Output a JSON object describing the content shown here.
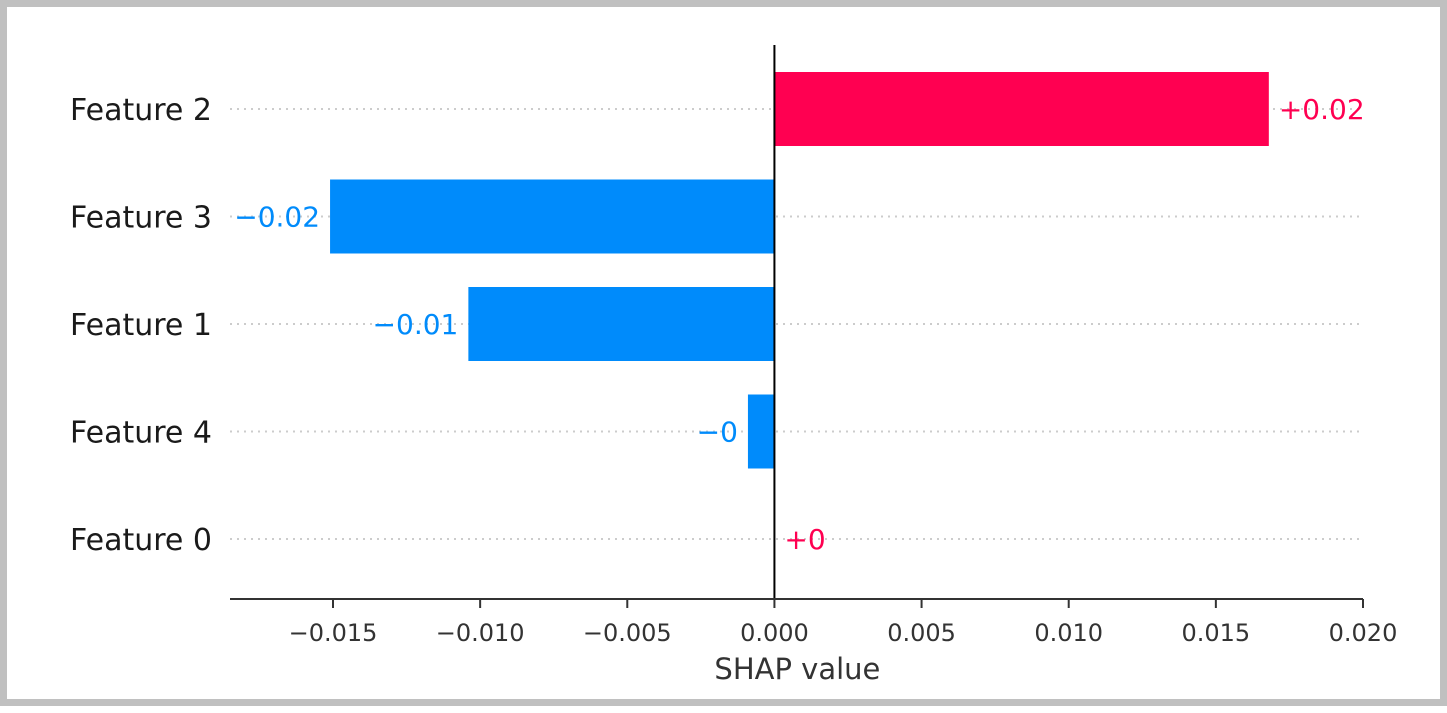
{
  "chart_data": {
    "type": "bar",
    "orientation": "horizontal",
    "title": "",
    "xlabel": "SHAP value",
    "ylabel": "",
    "xlim": [
      -0.0185,
      0.02
    ],
    "grid": false,
    "legend": "none",
    "categories": [
      "Feature 2",
      "Feature 3",
      "Feature 1",
      "Feature 4",
      "Feature 0"
    ],
    "values": [
      0.0168,
      -0.0151,
      -0.0104,
      -0.0009,
      0.0
    ],
    "value_labels": [
      "+0.02",
      "−0.02",
      "−0.01",
      "−0",
      "+0"
    ],
    "x_ticks": [
      -0.015,
      -0.01,
      -0.005,
      0.0,
      0.005,
      0.01,
      0.015,
      0.02
    ],
    "x_tick_labels": [
      "−0.015",
      "−0.010",
      "−0.005",
      "0.000",
      "0.005",
      "0.010",
      "0.015",
      "0.020"
    ],
    "colors": {
      "positive": "#ff0051",
      "negative": "#008bfb",
      "gridline": "#cccccc",
      "axis": "#333333"
    }
  }
}
